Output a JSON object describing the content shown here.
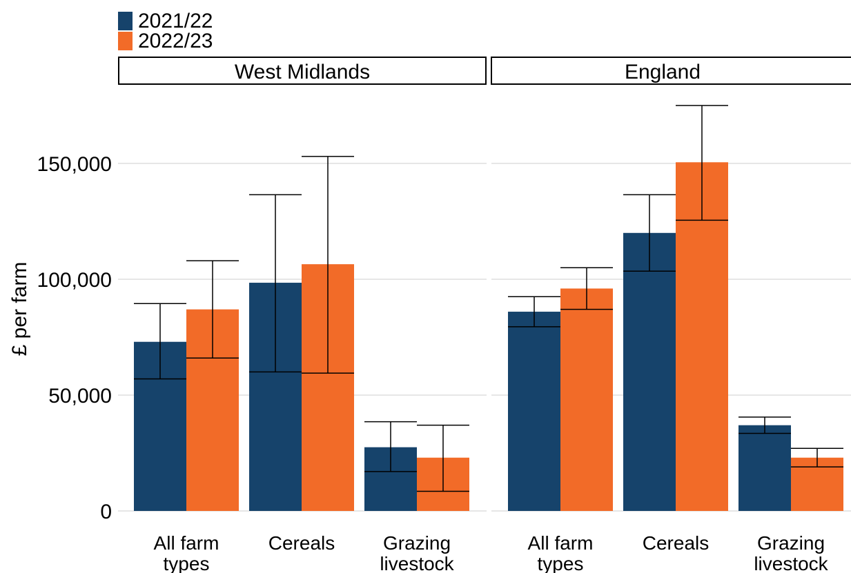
{
  "chart_data": {
    "type": "bar",
    "ylabel": "£ per farm",
    "ylim": [
      0,
      180000
    ],
    "yticks": [
      0,
      50000,
      100000,
      150000
    ],
    "ytick_labels": [
      "0",
      "50,000",
      "100,000",
      "150,000"
    ],
    "grid": "horizontal",
    "legend_position": "top-left",
    "colors": {
      "2021/22": "#16436b",
      "2022/23": "#f26b28"
    },
    "series_names": [
      "2021/22",
      "2022/23"
    ],
    "panels": [
      {
        "name": "West Midlands",
        "categories": [
          "All farm\ntypes",
          "Cereals",
          "Grazing\nlivestock"
        ],
        "series": [
          {
            "name": "2021/22",
            "values": [
              73000,
              98500,
              27500
            ],
            "lower": [
              57000,
              60000,
              17000
            ],
            "upper": [
              89500,
              136500,
              38500
            ]
          },
          {
            "name": "2022/23",
            "values": [
              87000,
              106500,
              23000
            ],
            "lower": [
              66000,
              59500,
              8500
            ],
            "upper": [
              108000,
              153000,
              37000
            ]
          }
        ]
      },
      {
        "name": "England",
        "categories": [
          "All farm\ntypes",
          "Cereals",
          "Grazing\nlivestock"
        ],
        "series": [
          {
            "name": "2021/22",
            "values": [
              86000,
              120000,
              37000
            ],
            "lower": [
              79500,
              103500,
              33500
            ],
            "upper": [
              92500,
              136500,
              40500
            ]
          },
          {
            "name": "2022/23",
            "values": [
              96000,
              150500,
              23000
            ],
            "lower": [
              87000,
              125500,
              19000
            ],
            "upper": [
              105000,
              175000,
              27000
            ]
          }
        ]
      }
    ]
  }
}
